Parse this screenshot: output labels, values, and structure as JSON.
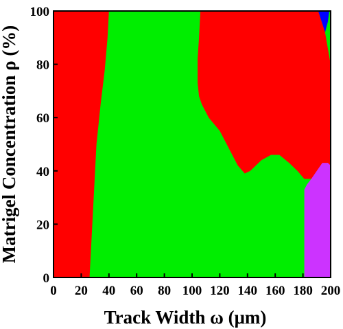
{
  "chart_data": {
    "type": "phase_diagram",
    "xlabel": "Track Width ω (μm)",
    "ylabel": "Matrigel Concentration ρ (%)",
    "xlim": [
      0,
      200
    ],
    "ylim": [
      0,
      100
    ],
    "x_ticks": [
      0,
      20,
      40,
      60,
      80,
      100,
      120,
      140,
      160,
      180,
      200
    ],
    "y_ticks": [
      0,
      20,
      40,
      60,
      80,
      100
    ],
    "grid": false,
    "legend": "none",
    "regions": [
      {
        "color": "#ff0000",
        "boundary": [
          [
            0,
            0
          ],
          [
            26,
            0
          ],
          [
            27,
            10
          ],
          [
            29,
            30
          ],
          [
            31,
            50
          ],
          [
            34,
            65
          ],
          [
            37,
            78
          ],
          [
            39,
            90
          ],
          [
            40,
            100
          ],
          [
            0,
            100
          ]
        ]
      },
      {
        "color": "#00ee00",
        "boundary": [
          [
            26,
            0
          ],
          [
            181,
            0
          ],
          [
            181,
            35
          ],
          [
            186,
            37
          ],
          [
            190,
            39
          ],
          [
            195,
            42
          ],
          [
            200,
            42
          ],
          [
            200,
            85
          ],
          [
            199,
            90
          ],
          [
            198,
            96
          ],
          [
            197,
            100
          ],
          [
            106,
            100
          ],
          [
            105,
            90
          ],
          [
            104,
            82
          ],
          [
            104,
            73
          ],
          [
            105,
            68
          ],
          [
            107,
            65
          ],
          [
            112,
            60
          ],
          [
            120,
            55
          ],
          [
            128,
            47
          ],
          [
            133,
            42
          ],
          [
            138,
            39
          ],
          [
            142,
            40
          ],
          [
            150,
            44
          ],
          [
            157,
            46
          ],
          [
            163,
            46
          ],
          [
            170,
            43
          ],
          [
            176,
            40
          ],
          [
            181,
            37
          ],
          [
            181,
            35
          ],
          [
            186,
            37
          ],
          [
            181,
            37
          ],
          [
            181,
            0
          ],
          [
            26,
            0
          ],
          [
            27,
            10
          ],
          [
            29,
            30
          ],
          [
            31,
            50
          ],
          [
            34,
            65
          ],
          [
            37,
            78
          ],
          [
            39,
            90
          ],
          [
            40,
            100
          ],
          [
            40,
            100
          ]
        ]
      },
      {
        "color": "#ff0000",
        "boundary": [
          [
            106,
            100
          ],
          [
            191,
            100
          ],
          [
            196,
            92
          ],
          [
            198,
            86
          ],
          [
            200,
            80
          ],
          [
            200,
            42
          ],
          [
            195,
            42
          ],
          [
            190,
            39
          ],
          [
            186,
            37
          ],
          [
            181,
            37
          ],
          [
            176,
            40
          ],
          [
            170,
            43
          ],
          [
            163,
            46
          ],
          [
            157,
            46
          ],
          [
            150,
            44
          ],
          [
            142,
            40
          ],
          [
            138,
            39
          ],
          [
            133,
            42
          ],
          [
            128,
            47
          ],
          [
            120,
            55
          ],
          [
            112,
            60
          ],
          [
            107,
            65
          ],
          [
            105,
            68
          ],
          [
            104,
            73
          ],
          [
            104,
            82
          ],
          [
            105,
            90
          ]
        ]
      },
      {
        "color": "#cc33ff",
        "boundary": [
          [
            181,
            0
          ],
          [
            200,
            0
          ],
          [
            200,
            42
          ],
          [
            198,
            43
          ],
          [
            194,
            43
          ],
          [
            190,
            40
          ],
          [
            186,
            37
          ],
          [
            183,
            35
          ],
          [
            181,
            33
          ]
        ]
      },
      {
        "color": "#00ee00",
        "boundary": [
          [
            200,
            80
          ],
          [
            198,
            86
          ],
          [
            196,
            92
          ],
          [
            197,
            100
          ],
          [
            200,
            100
          ]
        ]
      },
      {
        "color": "#0000ff",
        "boundary": [
          [
            191,
            100
          ],
          [
            196,
            92
          ],
          [
            198,
            96
          ],
          [
            199,
            100
          ]
        ]
      }
    ]
  }
}
